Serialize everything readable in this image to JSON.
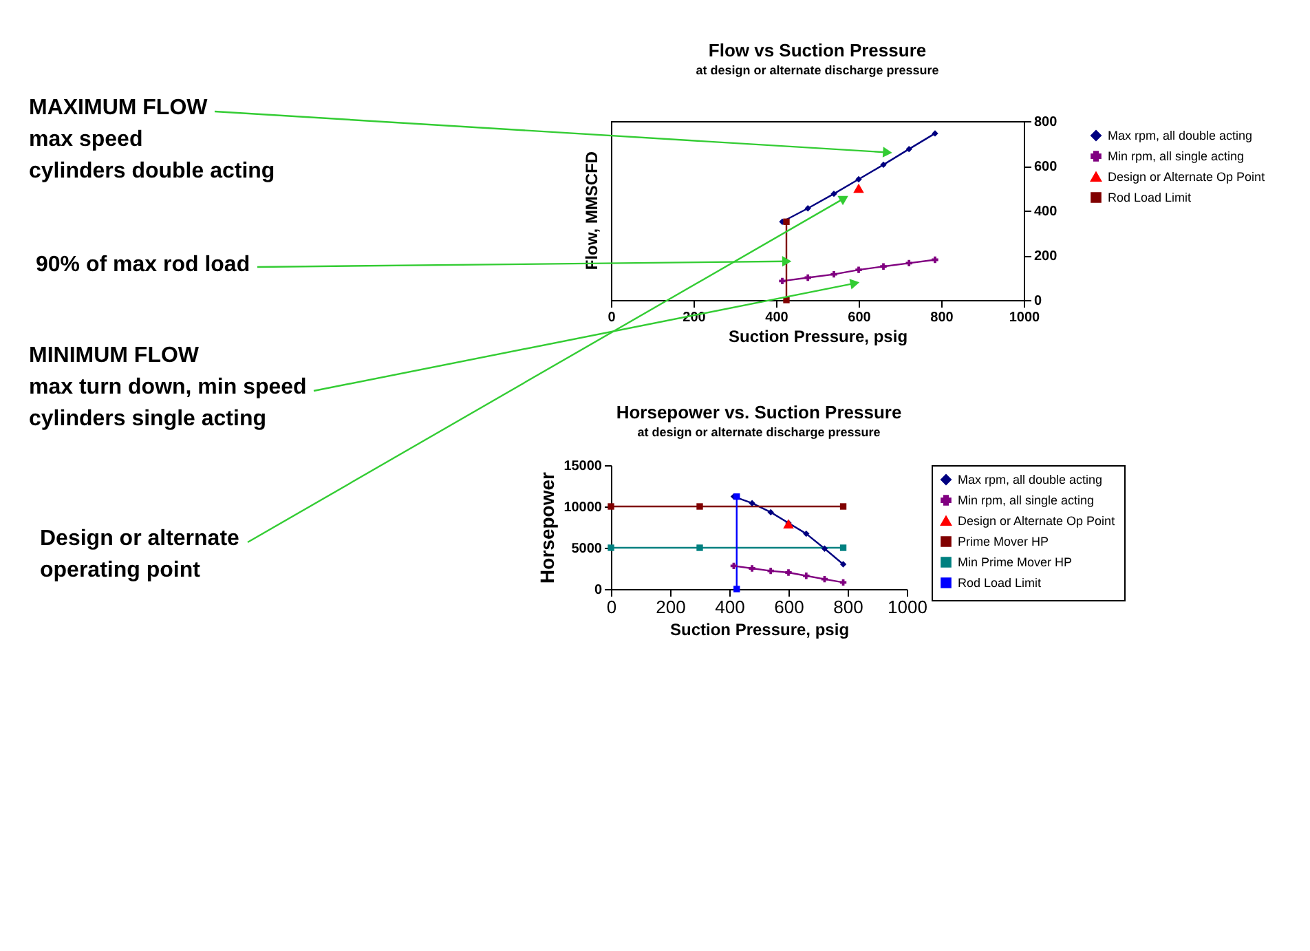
{
  "chart_data": [
    {
      "type": "line",
      "title": "Flow vs Suction Pressure",
      "subtitle": "at design or alternate discharge pressure",
      "xlabel": "Suction Pressure, psig",
      "ylabel": "Flow,  MMSCFD",
      "xlim": [
        0,
        1000
      ],
      "xticks": [
        0,
        200,
        400,
        600,
        800,
        1000
      ],
      "ylim": [
        0,
        800
      ],
      "yticks": [
        0,
        200,
        400,
        600,
        800
      ],
      "legend": "right",
      "grid": false,
      "series": [
        {
          "name": "Max rpm, all double acting",
          "color": "#000080",
          "marker": "diamond",
          "x": [
            415,
            477,
            540,
            600,
            660,
            722,
            785
          ],
          "values": [
            350,
            410,
            475,
            540,
            605,
            675,
            745
          ]
        },
        {
          "name": "Min  rpm, all single acting",
          "color": "#800080",
          "marker": "cross",
          "x": [
            415,
            477,
            540,
            600,
            660,
            722,
            785
          ],
          "values": [
            85,
            100,
            115,
            135,
            150,
            165,
            180
          ]
        },
        {
          "name": "Design or Alternate Op Point",
          "type": "scatter",
          "color": "#ff0000",
          "marker": "triangle",
          "x": [
            600
          ],
          "values": [
            500
          ]
        },
        {
          "name": "Rod Load Limit",
          "color": "#800000",
          "marker": "square",
          "x": [
            425,
            425
          ],
          "values": [
            0,
            350
          ]
        }
      ],
      "annotations": [
        {
          "text": "MAXIMUM FLOW\nmax speed\ncylinders double acting",
          "x": 670,
          "y": 660
        },
        {
          "text": "90% of max rod load",
          "x": 426,
          "y": 173
        },
        {
          "text": "MINIMUM FLOW\nmax turn down, min speed\ncylinders single acting",
          "x": 591,
          "y": 75
        },
        {
          "text": "Design or alternate\noperating point",
          "x": 565,
          "y": 455
        }
      ]
    },
    {
      "type": "line",
      "title": "Horsepower vs. Suction Pressure",
      "subtitle": "at design or alternate discharge pressure",
      "xlabel": "Suction Pressure, psig",
      "ylabel": "Horsepower",
      "xlim": [
        0,
        1000
      ],
      "xticks": [
        0,
        200,
        400,
        600,
        800,
        1000
      ],
      "ylim": [
        0,
        15000
      ],
      "yticks": [
        0,
        5000,
        10000,
        15000
      ],
      "legend": "right",
      "grid": false,
      "series": [
        {
          "name": "Max rpm, all double acting",
          "color": "#000080",
          "marker": "diamond",
          "x": [
            415,
            477,
            540,
            600,
            660,
            722,
            785
          ],
          "values": [
            11200,
            10400,
            9300,
            8000,
            6700,
            4900,
            3000
          ]
        },
        {
          "name": "Min  rpm, all single acting",
          "color": "#800080",
          "marker": "cross",
          "x": [
            415,
            477,
            540,
            600,
            660,
            722,
            785
          ],
          "values": [
            2800,
            2500,
            2200,
            2000,
            1600,
            1200,
            800
          ]
        },
        {
          "name": "Design or Alternate Op Point",
          "type": "scatter",
          "color": "#ff0000",
          "marker": "triangle",
          "x": [
            600
          ],
          "values": [
            7900
          ]
        },
        {
          "name": "Prime Mover HP",
          "color": "#800000",
          "marker": "square",
          "x": [
            0,
            300,
            785
          ],
          "values": [
            10000,
            10000,
            10000
          ]
        },
        {
          "name": "Min Prime Mover HP",
          "color": "#008080",
          "marker": "square",
          "x": [
            0,
            300,
            785
          ],
          "values": [
            5000,
            5000,
            5000
          ]
        },
        {
          "name": "Rod Load Limit",
          "color": "#0000ff",
          "marker": "square",
          "x": [
            425,
            425
          ],
          "values": [
            0,
            11200
          ]
        }
      ]
    }
  ]
}
